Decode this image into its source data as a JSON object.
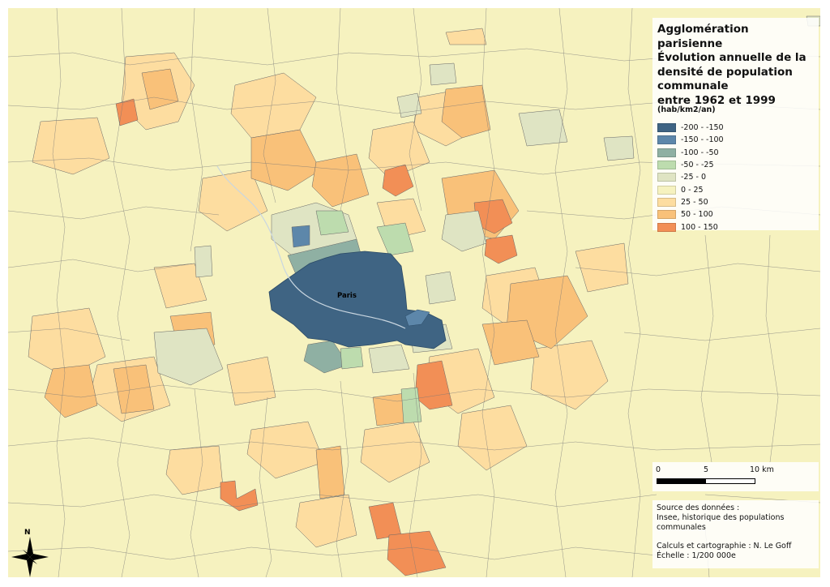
{
  "map": {
    "title": "Agglomération parisienne\nÉvolution annuelle de la densité de population communale\nentre 1962 et 1999",
    "units": "(hab/km2/an)",
    "center_label": "Paris",
    "north_label": "N",
    "legend": [
      {
        "label": "-200 - -150",
        "color": "#3f6483"
      },
      {
        "label": "-150 - -100",
        "color": "#5d87aa"
      },
      {
        "label": "-100 - -50",
        "color": "#8fb0a3"
      },
      {
        "label": "-50 - -25",
        "color": "#bddcae"
      },
      {
        "label": "-25 - 0",
        "color": "#dfe4c3"
      },
      {
        "label": "0 - 25",
        "color": "#f6f2bf"
      },
      {
        "label": "25 - 50",
        "color": "#fddda0"
      },
      {
        "label": "50 - 100",
        "color": "#f9c179"
      },
      {
        "label": "100 - 150",
        "color": "#f28f56"
      }
    ],
    "scale": {
      "labels": [
        "0",
        "5",
        "10 km"
      ]
    },
    "source": {
      "line1": "Source des données :",
      "line2": "Insee, historique des populations",
      "line3": "communales",
      "line4": "Calculs et cartographie : N. Le Goff",
      "line5": "Échelle : 1/200 000e"
    }
  }
}
